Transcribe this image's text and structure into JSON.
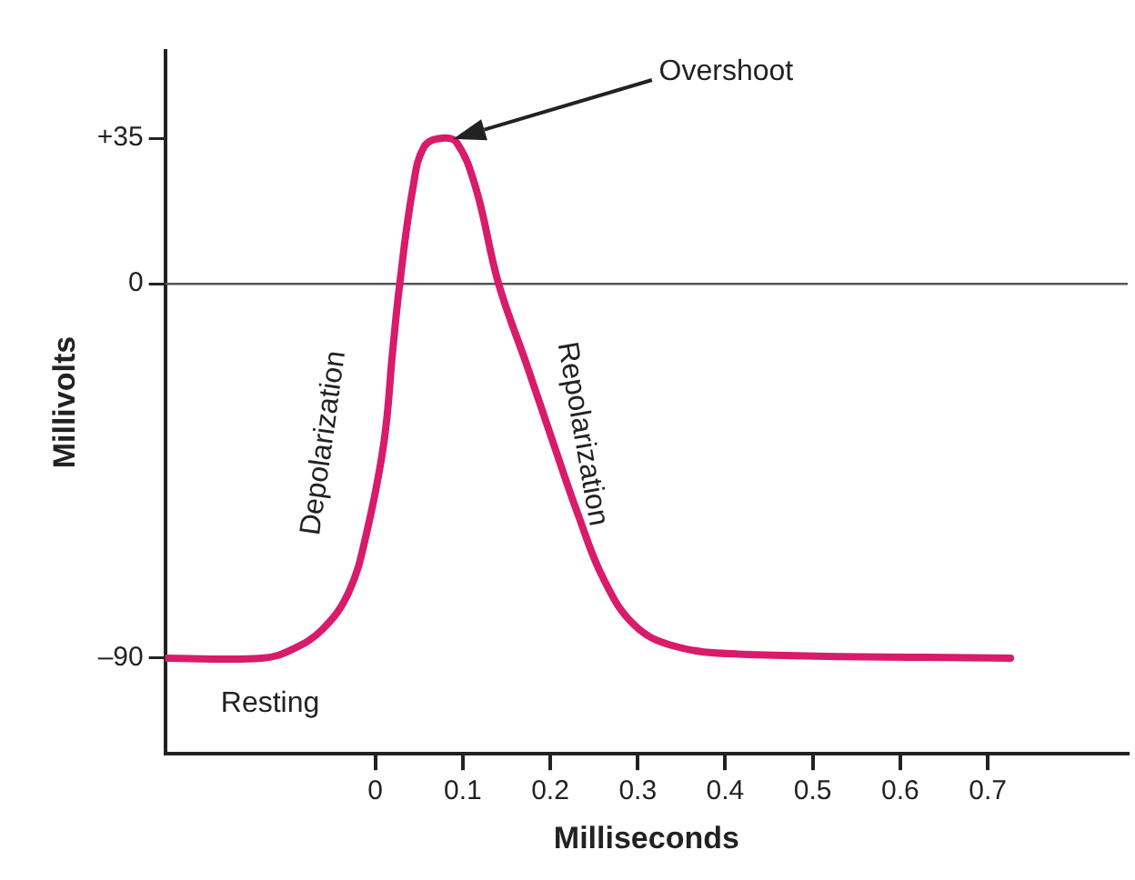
{
  "chart_data": {
    "type": "line",
    "xlabel": "Milliseconds",
    "ylabel": "Millivolts",
    "x": [
      -0.24,
      -0.13,
      -0.096,
      -0.06,
      -0.03,
      -0.01,
      0.01,
      0.02,
      0.028,
      0.043,
      0.056,
      0.076,
      0.093,
      0.115,
      0.141,
      0.174,
      0.203,
      0.231,
      0.261,
      0.296,
      0.34,
      0.414,
      0.726
    ],
    "series": [
      {
        "color": "#d81b6a",
        "values": [
          -90,
          -90,
          -88,
          -83,
          -74,
          -60,
          -38,
          -16,
          0,
          23,
          33,
          35,
          34,
          23,
          0,
          -20,
          -38,
          -55,
          -71,
          -82,
          -87,
          -89,
          -90
        ]
      }
    ],
    "xlim": [
      -0.24,
      0.86
    ],
    "xticks": [
      0,
      0.1,
      0.2,
      0.3,
      0.4,
      0.5,
      0.6,
      0.7
    ],
    "ylim": [
      -113,
      56
    ],
    "yticks": [
      {
        "value": 35,
        "label": "+35"
      },
      0,
      {
        "value": -90,
        "label": "–90"
      }
    ],
    "ref_lines": [
      {
        "axis": "y",
        "value": 0,
        "color": "#555555"
      }
    ],
    "annotations": [
      "Overshoot",
      "Depolarization",
      "Repolarization",
      "Resting"
    ],
    "grid": false,
    "legend": false,
    "marker": "none",
    "line_style": "solid"
  }
}
